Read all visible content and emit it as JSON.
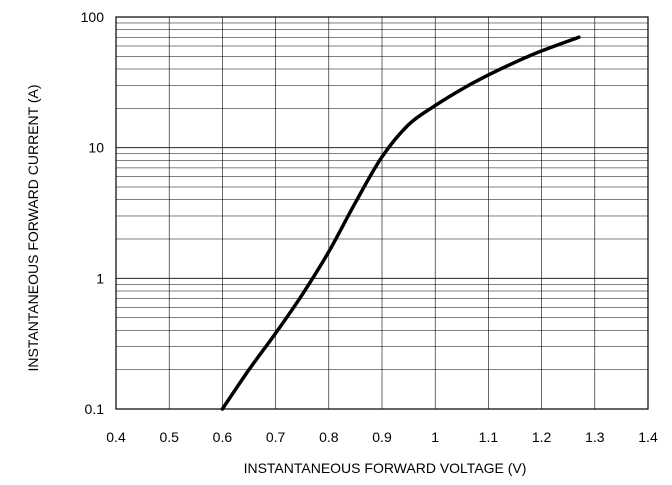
{
  "chart_data": {
    "type": "line",
    "xlabel": "INSTANTANEOUS FORWARD VOLTAGE (V)",
    "ylabel": "INSTANTANEOUS FORWARD CURRENT (A)",
    "xlim": [
      0.4,
      1.4
    ],
    "ylim": [
      0.1,
      100
    ],
    "yscale": "log",
    "grid": true,
    "x_ticks": [
      "0.4",
      "0.5",
      "0.6",
      "0.7",
      "0.8",
      "0.9",
      "1",
      "1.1",
      "1.2",
      "1.3",
      "1.4"
    ],
    "y_ticks": [
      "0.1",
      "1",
      "10",
      "100"
    ],
    "series": [
      {
        "color": "#000000",
        "x": [
          0.6,
          0.65,
          0.7,
          0.75,
          0.8,
          0.85,
          0.9,
          0.95,
          1.0,
          1.05,
          1.1,
          1.15,
          1.2,
          1.27
        ],
        "y": [
          0.1,
          0.2,
          0.38,
          0.75,
          1.6,
          3.8,
          8.5,
          15,
          21,
          28,
          36,
          45,
          55,
          70
        ]
      }
    ]
  }
}
